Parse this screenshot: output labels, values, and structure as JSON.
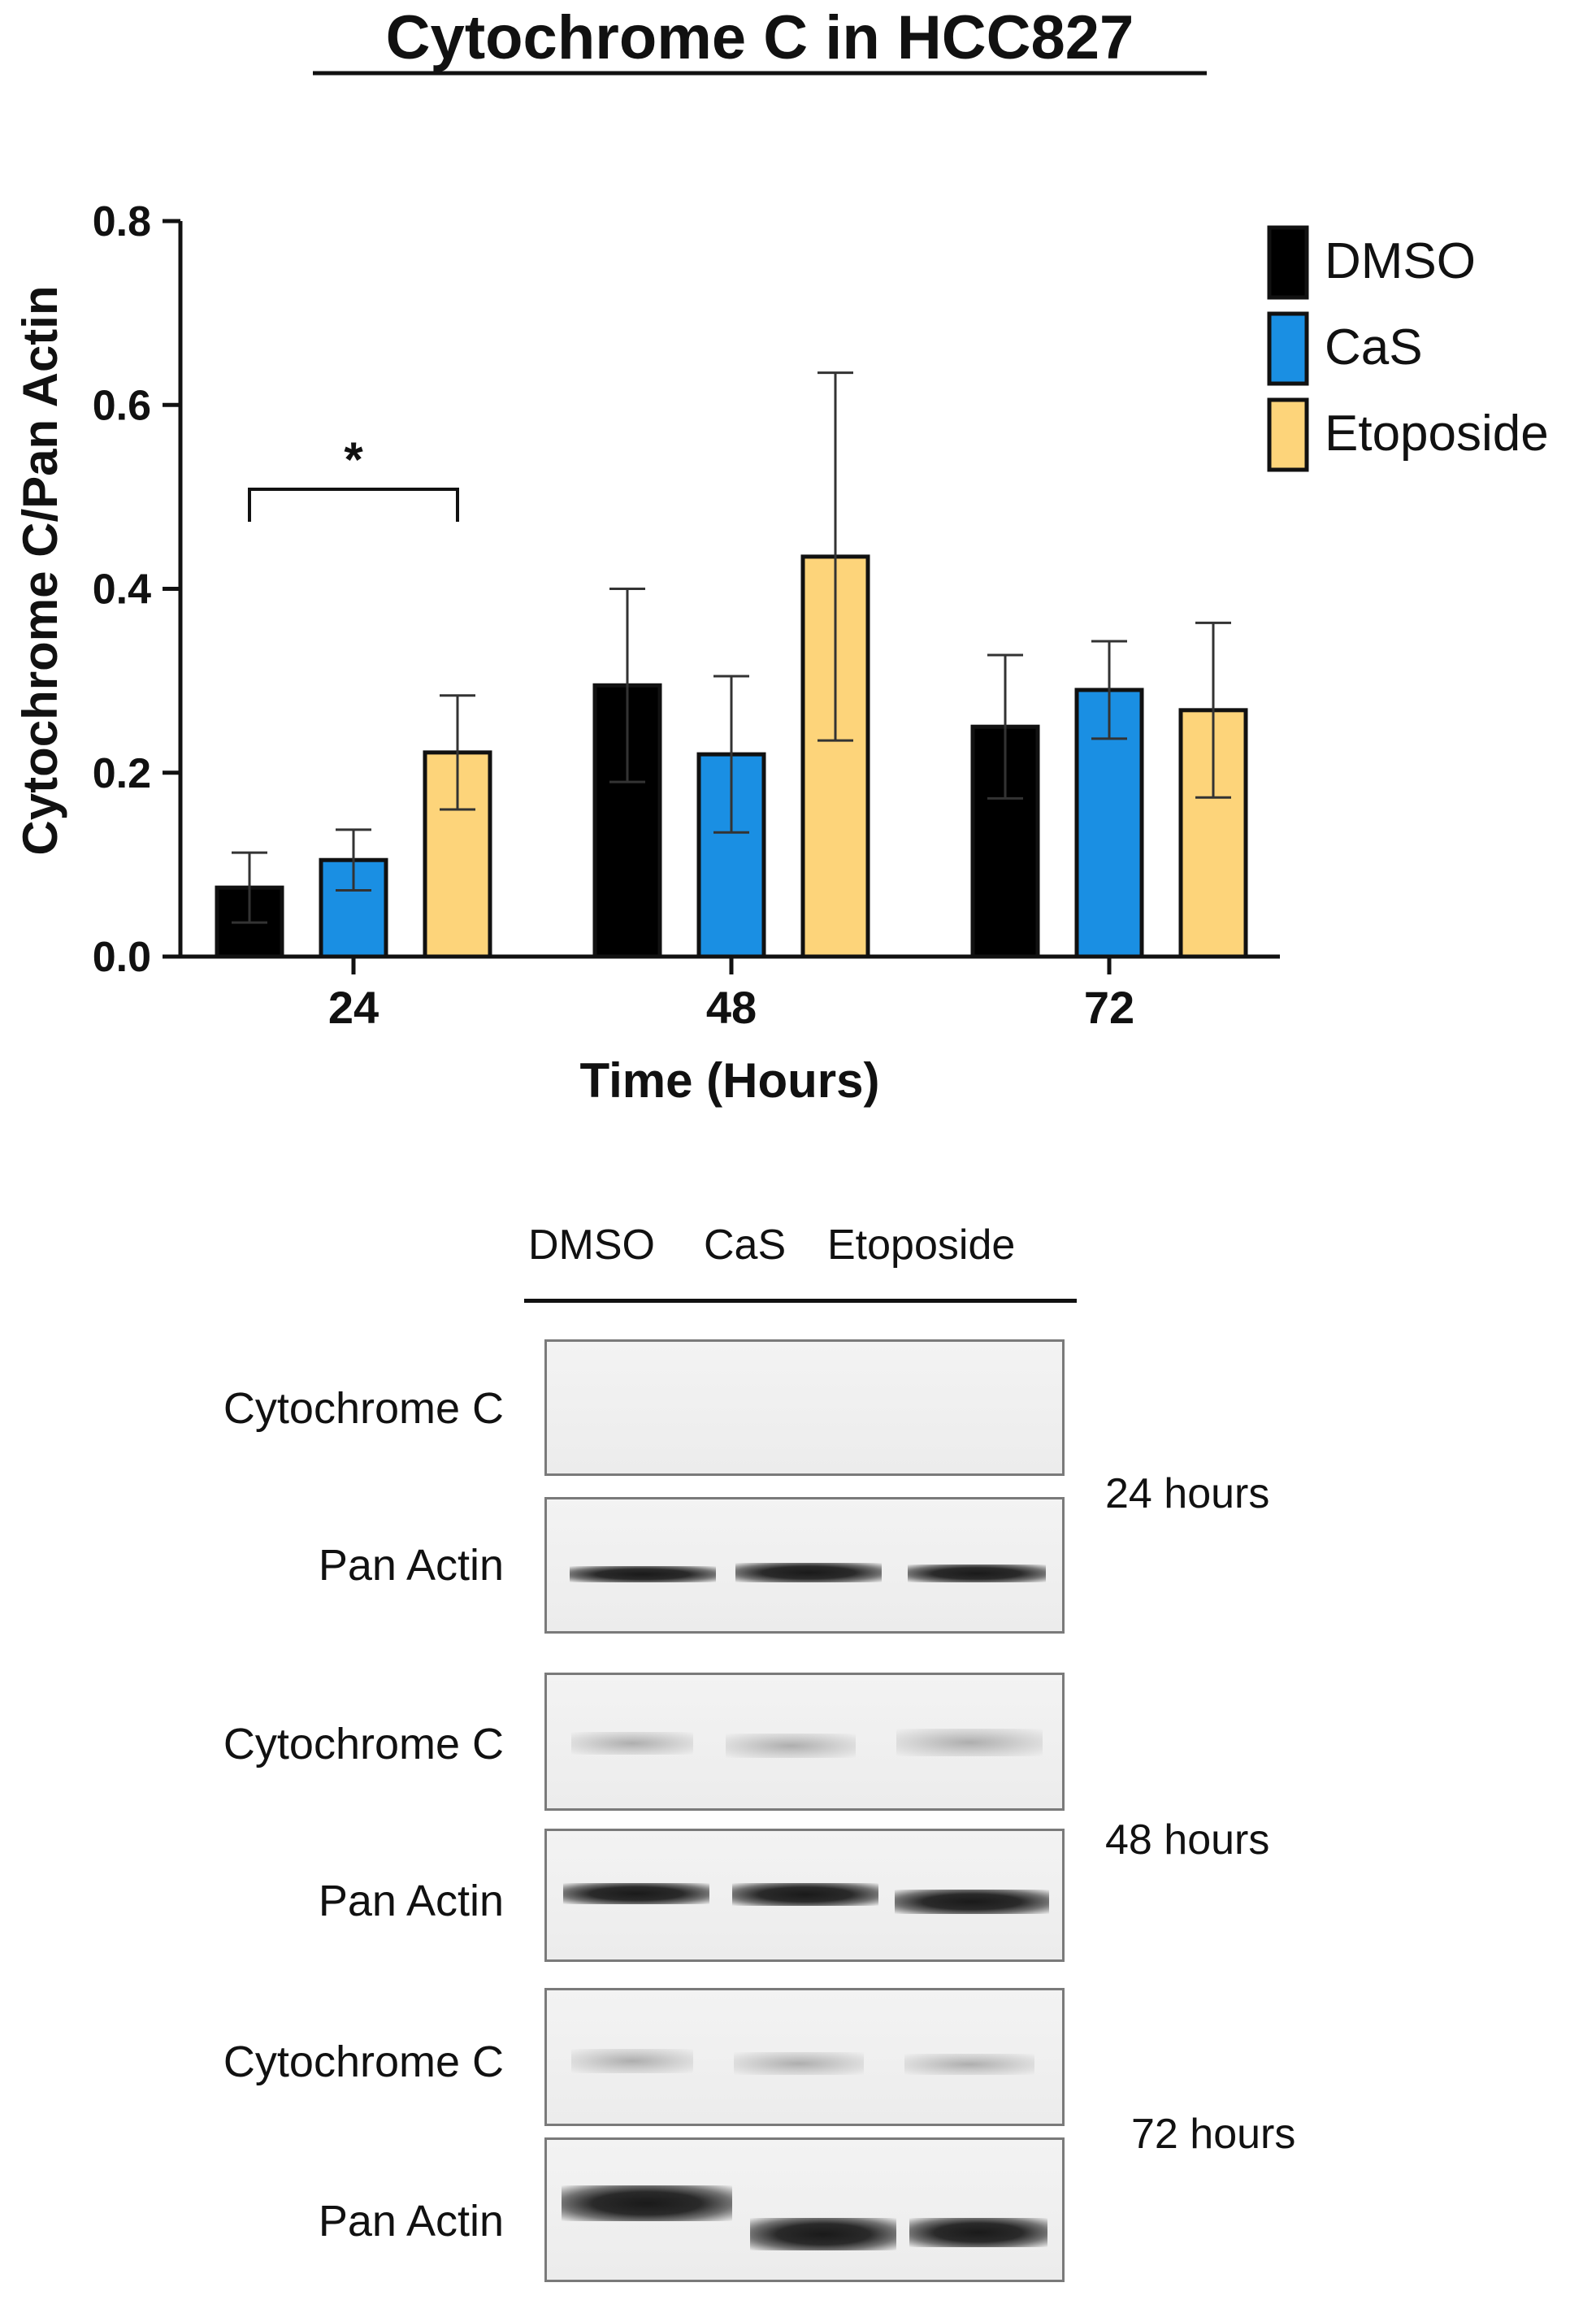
{
  "chart_data": {
    "type": "bar",
    "title": "Cytochrome C in HCC827",
    "xlabel": "Time (Hours)",
    "ylabel": "Cytochrome C/Pan Actin",
    "categories": [
      "24",
      "48",
      "72"
    ],
    "ylim": [
      0,
      0.8
    ],
    "yticks": [
      "0.0",
      "0.2",
      "0.4",
      "0.6",
      "0.8"
    ],
    "legend_position": "top-right",
    "grid": false,
    "series": [
      {
        "name": "DMSO",
        "color": "#000000",
        "values": [
          0.075,
          0.295,
          0.25
        ],
        "errors": [
          0.038,
          0.105,
          0.078
        ]
      },
      {
        "name": "CaS",
        "color": "#1a8fe3",
        "values": [
          0.105,
          0.22,
          0.29
        ],
        "errors": [
          0.033,
          0.085,
          0.053
        ]
      },
      {
        "name": "Etoposide",
        "color": "#fdd47a",
        "values": [
          0.222,
          0.435,
          0.268
        ],
        "errors": [
          0.062,
          0.2,
          0.095
        ]
      }
    ],
    "annotations": [
      {
        "text": "*",
        "category": "24",
        "between": [
          "DMSO",
          "Etoposide"
        ]
      }
    ]
  },
  "blot": {
    "lanes": [
      "DMSO",
      "CaS",
      "Etoposide"
    ],
    "rows": [
      {
        "label": "Cytochrome C"
      },
      {
        "label": "Pan Actin"
      },
      {
        "label": "Cytochrome C"
      },
      {
        "label": "Pan Actin"
      },
      {
        "label": "Cytochrome C"
      },
      {
        "label": "Pan Actin"
      }
    ],
    "timepoints": [
      "24 hours",
      "48 hours",
      "72 hours"
    ]
  }
}
